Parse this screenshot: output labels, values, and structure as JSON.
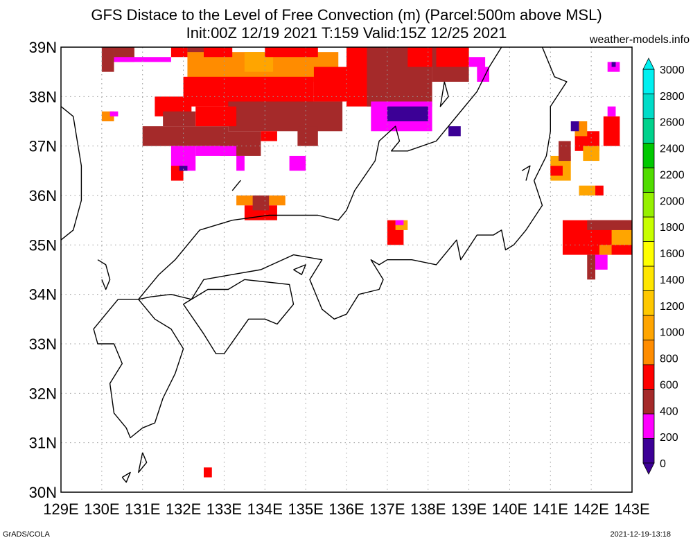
{
  "title_line1": "GFS Distace to the Level of Free Convection (m) (Parcel:500m above MSL)",
  "title_line2": "Init:00Z 12/19 2021 T:159 Valid:15Z 12/25 2021",
  "site": "weather-models.info",
  "footer_left": "GrADS/COLA",
  "footer_right": "2021-12-19-13:18",
  "map": {
    "lon_min": 129,
    "lon_max": 143,
    "lat_min": 30,
    "lat_max": 39,
    "lon_labels": [
      "129E",
      "130E",
      "131E",
      "132E",
      "133E",
      "134E",
      "135E",
      "136E",
      "137E",
      "138E",
      "139E",
      "140E",
      "141E",
      "142E",
      "143E"
    ],
    "lat_labels": [
      "30N",
      "31N",
      "32N",
      "33N",
      "34N",
      "35N",
      "36N",
      "37N",
      "38N",
      "39N"
    ]
  },
  "colorbar": {
    "labels": [
      "0",
      "200",
      "400",
      "600",
      "800",
      "1000",
      "1200",
      "1400",
      "1600",
      "1800",
      "2000",
      "2200",
      "2400",
      "2600",
      "2800",
      "3000"
    ],
    "colors": [
      "#3c0096",
      "#ff00ff",
      "#a52a2a",
      "#ff0000",
      "#ff8c00",
      "#ffa500",
      "#ffc800",
      "#ffe600",
      "#ffff00",
      "#c8ff00",
      "#96f000",
      "#50dc00",
      "#00c800",
      "#00d28c",
      "#00dcc8",
      "#00f0f0"
    ]
  },
  "shading": [
    {
      "c": 2,
      "lon": [
        130,
        130.3
      ],
      "lat": [
        38.5,
        39
      ]
    },
    {
      "c": 2,
      "lon": [
        130.3,
        130.8
      ],
      "lat": [
        38.7,
        39
      ]
    },
    {
      "c": 1,
      "lon": [
        130.3,
        131.7
      ],
      "lat": [
        38.7,
        38.8
      ]
    },
    {
      "c": 3,
      "lon": [
        131.7,
        132.1
      ],
      "lat": [
        38.8,
        39
      ]
    },
    {
      "c": 2,
      "lon": [
        132.1,
        132.6
      ],
      "lat": [
        38.8,
        39
      ]
    },
    {
      "c": 4,
      "lon": [
        132.1,
        135.8
      ],
      "lat": [
        38.3,
        38.9
      ]
    },
    {
      "c": 5,
      "lon": [
        133.5,
        134.2
      ],
      "lat": [
        38.5,
        38.9
      ]
    },
    {
      "c": 3,
      "lon": [
        132.5,
        133.2
      ],
      "lat": [
        38.8,
        39
      ]
    },
    {
      "c": 3,
      "lon": [
        134,
        135.3
      ],
      "lat": [
        38.8,
        39
      ]
    },
    {
      "c": 3,
      "lon": [
        132,
        135.2
      ],
      "lat": [
        37.8,
        38.4
      ]
    },
    {
      "c": 3,
      "lon": [
        131.3,
        132.2
      ],
      "lat": [
        37.6,
        38
      ]
    },
    {
      "c": 3,
      "lon": [
        135.2,
        136.3
      ],
      "lat": [
        37.9,
        38.6
      ]
    },
    {
      "c": 2,
      "lon": [
        131,
        133.1
      ],
      "lat": [
        37.0,
        37.4
      ]
    },
    {
      "c": 2,
      "lon": [
        133.1,
        135.9
      ],
      "lat": [
        37.3,
        37.9
      ]
    },
    {
      "c": 2,
      "lon": [
        131.5,
        132.3
      ],
      "lat": [
        37.4,
        37.7
      ]
    },
    {
      "c": 3,
      "lon": [
        132.3,
        133.3
      ],
      "lat": [
        37.4,
        37.8
      ]
    },
    {
      "c": 2,
      "lon": [
        132.9,
        133.9
      ],
      "lat": [
        36.8,
        37.3
      ]
    },
    {
      "c": 3,
      "lon": [
        133.9,
        134.3
      ],
      "lat": [
        37.1,
        37.3
      ]
    },
    {
      "c": 2,
      "lon": [
        134.8,
        135.3
      ],
      "lat": [
        37.0,
        37.4
      ]
    },
    {
      "c": 1,
      "lon": [
        131.7,
        132.3
      ],
      "lat": [
        36.5,
        37.0
      ]
    },
    {
      "c": 1,
      "lon": [
        132.3,
        133.3
      ],
      "lat": [
        36.8,
        37.0
      ]
    },
    {
      "c": 1,
      "lon": [
        133.3,
        133.5
      ],
      "lat": [
        36.5,
        36.8
      ]
    },
    {
      "c": 1,
      "lon": [
        134.6,
        135
      ],
      "lat": [
        36.5,
        36.8
      ]
    },
    {
      "c": 3,
      "lon": [
        131.7,
        132
      ],
      "lat": [
        36.3,
        36.6
      ]
    },
    {
      "c": 0,
      "lon": [
        131.9,
        132.1
      ],
      "lat": [
        36.5,
        36.6
      ]
    },
    {
      "c": 4,
      "lon": [
        133.3,
        134.5
      ],
      "lat": [
        35.8,
        36.0
      ]
    },
    {
      "c": 3,
      "lon": [
        133.5,
        134.3
      ],
      "lat": [
        35.5,
        35.8
      ]
    },
    {
      "c": 2,
      "lon": [
        133.7,
        134.1
      ],
      "lat": [
        35.7,
        36.0
      ]
    },
    {
      "c": 3,
      "lon": [
        136,
        137
      ],
      "lat": [
        37.8,
        39
      ]
    },
    {
      "c": 2,
      "lon": [
        136.5,
        138.1
      ],
      "lat": [
        37.8,
        39
      ]
    },
    {
      "c": 3,
      "lon": [
        137.5,
        138.5
      ],
      "lat": [
        38.6,
        39
      ]
    },
    {
      "c": 1,
      "lon": [
        136.6,
        138.1
      ],
      "lat": [
        37.3,
        37.9
      ]
    },
    {
      "c": 0,
      "lon": [
        137,
        138
      ],
      "lat": [
        37.5,
        37.8
      ]
    },
    {
      "c": 2,
      "lon": [
        138.1,
        139
      ],
      "lat": [
        38.3,
        39
      ]
    },
    {
      "c": 3,
      "lon": [
        138.2,
        139
      ],
      "lat": [
        38.6,
        39
      ]
    },
    {
      "c": 1,
      "lon": [
        139,
        139.4
      ],
      "lat": [
        38.6,
        38.8
      ]
    },
    {
      "c": 1,
      "lon": [
        139.2,
        139.5
      ],
      "lat": [
        38.3,
        38.6
      ]
    },
    {
      "c": 0,
      "lon": [
        138.5,
        138.8
      ],
      "lat": [
        37.2,
        37.4
      ]
    },
    {
      "c": 4,
      "lon": [
        130,
        130.3
      ],
      "lat": [
        37.5,
        37.7
      ]
    },
    {
      "c": 1,
      "lon": [
        130.2,
        130.4
      ],
      "lat": [
        37.6,
        37.7
      ]
    },
    {
      "c": 3,
      "lon": [
        137,
        137.4
      ],
      "lat": [
        35.0,
        35.5
      ]
    },
    {
      "c": 5,
      "lon": [
        137.2,
        137.5
      ],
      "lat": [
        35.3,
        35.5
      ]
    },
    {
      "c": 1,
      "lon": [
        137.2,
        137.4
      ],
      "lat": [
        35.4,
        35.5
      ]
    },
    {
      "c": 3,
      "lon": [
        132.5,
        132.7
      ],
      "lat": [
        30.3,
        30.5
      ]
    },
    {
      "c": 5,
      "lon": [
        141,
        141.5
      ],
      "lat": [
        36.3,
        36.8
      ]
    },
    {
      "c": 3,
      "lon": [
        141,
        141.3
      ],
      "lat": [
        36.4,
        36.6
      ]
    },
    {
      "c": 2,
      "lon": [
        141.2,
        141.5
      ],
      "lat": [
        36.7,
        37.1
      ]
    },
    {
      "c": 3,
      "lon": [
        141.6,
        142.2
      ],
      "lat": [
        36.9,
        37.3
      ]
    },
    {
      "c": 4,
      "lon": [
        141.6,
        141.9
      ],
      "lat": [
        37.2,
        37.5
      ]
    },
    {
      "c": 0,
      "lon": [
        141.5,
        141.7
      ],
      "lat": [
        37.3,
        37.5
      ]
    },
    {
      "c": 3,
      "lon": [
        142.3,
        142.7
      ],
      "lat": [
        37.0,
        37.6
      ]
    },
    {
      "c": 1,
      "lon": [
        142.4,
        142.6
      ],
      "lat": [
        37.6,
        37.8
      ]
    },
    {
      "c": 5,
      "lon": [
        141.8,
        142.2
      ],
      "lat": [
        36.7,
        37.0
      ]
    },
    {
      "c": 5,
      "lon": [
        141.7,
        142.1
      ],
      "lat": [
        36.0,
        36.2
      ]
    },
    {
      "c": 3,
      "lon": [
        142.1,
        142.3
      ],
      "lat": [
        36.0,
        36.2
      ]
    },
    {
      "c": 1,
      "lon": [
        142.4,
        142.7
      ],
      "lat": [
        38.5,
        38.7
      ]
    },
    {
      "c": 0,
      "lon": [
        142.5,
        142.6
      ],
      "lat": [
        38.6,
        38.7
      ]
    },
    {
      "c": 3,
      "lon": [
        141.3,
        143
      ],
      "lat": [
        34.8,
        35.5
      ]
    },
    {
      "c": 2,
      "lon": [
        141.9,
        143
      ],
      "lat": [
        35.3,
        35.5
      ]
    },
    {
      "c": 5,
      "lon": [
        142.5,
        143
      ],
      "lat": [
        35.0,
        35.3
      ]
    },
    {
      "c": 2,
      "lon": [
        141.9,
        142.1
      ],
      "lat": [
        34.3,
        34.8
      ]
    },
    {
      "c": 1,
      "lon": [
        142.1,
        142.4
      ],
      "lat": [
        34.5,
        34.8
      ]
    },
    {
      "c": 4,
      "lon": [
        142.2,
        142.5
      ],
      "lat": [
        34.8,
        35.0
      ]
    }
  ],
  "coast": [
    [
      [
        129,
        35.1
      ],
      [
        129.3,
        35.3
      ],
      [
        129.5,
        35.9
      ],
      [
        129.5,
        36.6
      ],
      [
        129.4,
        37.1
      ],
      [
        129.3,
        37.6
      ],
      [
        129,
        37.8
      ]
    ],
    [
      [
        129.9,
        34.7
      ],
      [
        130.1,
        34.6
      ],
      [
        130.2,
        34.3
      ],
      [
        130.1,
        34.1
      ],
      [
        130,
        34.3
      ]
    ],
    [
      [
        130.4,
        33.9
      ],
      [
        130.9,
        33.9
      ],
      [
        131.3,
        33.5
      ],
      [
        131.7,
        33.3
      ],
      [
        132,
        32.9
      ],
      [
        131.8,
        32.4
      ],
      [
        131.5,
        31.9
      ],
      [
        131.3,
        31.4
      ],
      [
        131,
        31.3
      ],
      [
        130.7,
        31.1
      ],
      [
        130.6,
        31.3
      ],
      [
        130.3,
        31.6
      ],
      [
        130.2,
        32.2
      ],
      [
        130.5,
        32.6
      ],
      [
        130.3,
        33
      ],
      [
        129.9,
        33
      ],
      [
        129.8,
        33.3
      ],
      [
        130.1,
        33.6
      ],
      [
        130.4,
        33.9
      ]
    ],
    [
      [
        130.9,
        33.9
      ],
      [
        131.4,
        34.4
      ],
      [
        131.8,
        34.7
      ],
      [
        132.4,
        35.3
      ],
      [
        133.2,
        35.5
      ],
      [
        134.1,
        35.6
      ],
      [
        134.9,
        35.6
      ],
      [
        135.3,
        35.6
      ],
      [
        135.8,
        35.5
      ],
      [
        136,
        35.7
      ],
      [
        136.2,
        36.1
      ],
      [
        136.7,
        36.7
      ],
      [
        136.8,
        37.1
      ],
      [
        137.2,
        37.4
      ],
      [
        137.3,
        37.1
      ],
      [
        137.1,
        36.9
      ],
      [
        137.5,
        36.9
      ],
      [
        138.2,
        37.1
      ],
      [
        138.6,
        37.5
      ],
      [
        139.2,
        38.1
      ],
      [
        139.5,
        38.6
      ],
      [
        139.8,
        39
      ]
    ],
    [
      [
        140.8,
        39
      ],
      [
        141.1,
        38.4
      ],
      [
        141.4,
        38.3
      ],
      [
        141,
        37.8
      ],
      [
        141,
        37.3
      ],
      [
        140.9,
        36.8
      ],
      [
        140.6,
        36.3
      ],
      [
        140.8,
        35.8
      ],
      [
        140.4,
        35.3
      ],
      [
        140.1,
        35
      ],
      [
        139.9,
        34.9
      ],
      [
        139.8,
        35.3
      ],
      [
        139.6,
        35.2
      ],
      [
        139.2,
        35.2
      ],
      [
        138.8,
        34.7
      ],
      [
        138.7,
        35.1
      ],
      [
        138.2,
        34.6
      ],
      [
        137.6,
        34.7
      ],
      [
        137,
        34.7
      ],
      [
        136.8,
        34.6
      ],
      [
        136.6,
        34.7
      ],
      [
        136.9,
        34.3
      ],
      [
        136.8,
        34.1
      ],
      [
        136.3,
        34
      ],
      [
        136,
        33.6
      ],
      [
        135.7,
        33.5
      ],
      [
        135.4,
        33.7
      ],
      [
        135.1,
        34.3
      ],
      [
        135.4,
        34.7
      ],
      [
        134.7,
        34.8
      ],
      [
        133.9,
        34.5
      ],
      [
        133.2,
        34.4
      ],
      [
        132.5,
        34.3
      ],
      [
        132.2,
        33.9
      ],
      [
        131.7,
        34
      ],
      [
        131.2,
        33.95
      ],
      [
        130.9,
        33.9
      ]
    ],
    [
      [
        132,
        33.8
      ],
      [
        132.6,
        34.1
      ],
      [
        133.1,
        34.1
      ],
      [
        133.5,
        34.3
      ],
      [
        134.6,
        34.2
      ],
      [
        134.7,
        33.8
      ],
      [
        134.3,
        33.4
      ],
      [
        134,
        33.5
      ],
      [
        133.6,
        33.5
      ],
      [
        133,
        32.8
      ],
      [
        132.8,
        32.8
      ],
      [
        132.5,
        33.2
      ],
      [
        132,
        33.8
      ]
    ],
    [
      [
        134.7,
        34.5
      ],
      [
        134.9,
        34.4
      ],
      [
        135,
        34.6
      ],
      [
        134.7,
        34.5
      ]
    ],
    [
      [
        138.4,
        38.3
      ],
      [
        138.5,
        38
      ],
      [
        138.3,
        37.8
      ],
      [
        138.4,
        38.3
      ]
    ],
    [
      [
        130.5,
        30.3
      ],
      [
        130.7,
        30.4
      ],
      [
        130.6,
        30.2
      ],
      [
        130.5,
        30.3
      ]
    ],
    [
      [
        131,
        30.8
      ],
      [
        131.1,
        30.6
      ],
      [
        130.9,
        30.4
      ],
      [
        131,
        30.8
      ]
    ],
    [
      [
        140.3,
        36.5
      ],
      [
        140.5,
        36.6
      ],
      [
        140.4,
        36.3
      ]
    ],
    [
      [
        133.3,
        36.2
      ],
      [
        133.4,
        36.3
      ],
      [
        133.2,
        36.1
      ]
    ]
  ]
}
